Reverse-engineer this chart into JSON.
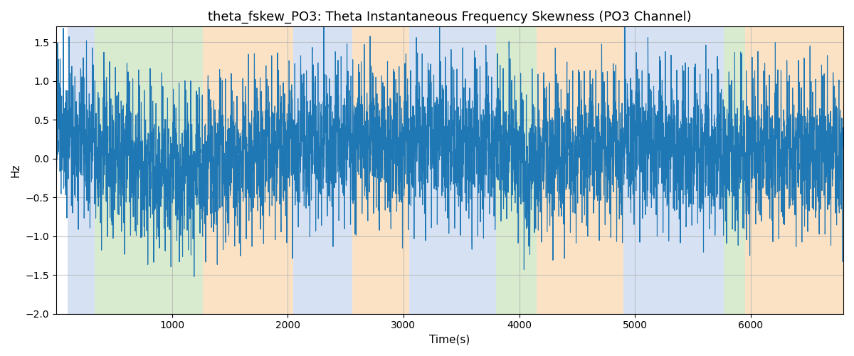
{
  "title": "theta_fskew_PO3: Theta Instantaneous Frequency Skewness (PO3 Channel)",
  "xlabel": "Time(s)",
  "ylabel": "Hz",
  "xlim": [
    0,
    6800
  ],
  "ylim": [
    -2.0,
    1.7
  ],
  "yticks": [
    -2.0,
    -1.5,
    -1.0,
    -0.5,
    0.0,
    0.5,
    1.0,
    1.5
  ],
  "xticks": [
    1000,
    2000,
    3000,
    4000,
    5000,
    6000
  ],
  "line_color": "#1f77b4",
  "line_width": 0.8,
  "bg_regions": [
    {
      "xstart": 100,
      "xend": 330,
      "color": "#aec6e8",
      "alpha": 0.5
    },
    {
      "xstart": 330,
      "xend": 1270,
      "color": "#b5d9a1",
      "alpha": 0.5
    },
    {
      "xstart": 1270,
      "xend": 2050,
      "color": "#f9c78a",
      "alpha": 0.5
    },
    {
      "xstart": 2050,
      "xend": 2560,
      "color": "#aec6e8",
      "alpha": 0.5
    },
    {
      "xstart": 2560,
      "xend": 3050,
      "color": "#f9c78a",
      "alpha": 0.5
    },
    {
      "xstart": 3050,
      "xend": 3800,
      "color": "#aec6e8",
      "alpha": 0.5
    },
    {
      "xstart": 3800,
      "xend": 4150,
      "color": "#b5d9a1",
      "alpha": 0.5
    },
    {
      "xstart": 4150,
      "xend": 4530,
      "color": "#f9c78a",
      "alpha": 0.5
    },
    {
      "xstart": 4530,
      "xend": 4900,
      "color": "#f9c78a",
      "alpha": 0.5
    },
    {
      "xstart": 4900,
      "xend": 5770,
      "color": "#aec6e8",
      "alpha": 0.5
    },
    {
      "xstart": 5770,
      "xend": 5950,
      "color": "#b5d9a1",
      "alpha": 0.5
    },
    {
      "xstart": 5950,
      "xend": 6800,
      "color": "#f9c78a",
      "alpha": 0.5
    }
  ],
  "grid_color": "#b0b0b0",
  "grid_alpha": 0.7,
  "grid_linewidth": 0.8,
  "figsize": [
    12.0,
    5.0
  ],
  "dpi": 100,
  "random_seed": 42,
  "n_points": 6700,
  "segment_means": [
    {
      "xstart": 0,
      "xend": 100,
      "mean": 0.8
    },
    {
      "xstart": 100,
      "xend": 330,
      "mean": 0.5
    },
    {
      "xstart": 330,
      "xend": 700,
      "mean": 0.15
    },
    {
      "xstart": 700,
      "xend": 1270,
      "mean": -0.3
    },
    {
      "xstart": 1270,
      "xend": 1700,
      "mean": -0.1
    },
    {
      "xstart": 1700,
      "xend": 2050,
      "mean": 0.25
    },
    {
      "xstart": 2050,
      "xend": 2560,
      "mean": 0.4
    },
    {
      "xstart": 2560,
      "xend": 2800,
      "mean": 0.5
    },
    {
      "xstart": 2800,
      "xend": 3050,
      "mean": 0.3
    },
    {
      "xstart": 3050,
      "xend": 3400,
      "mean": 0.5
    },
    {
      "xstart": 3400,
      "xend": 3800,
      "mean": 0.3
    },
    {
      "xstart": 3800,
      "xend": 4000,
      "mean": 0.4
    },
    {
      "xstart": 4000,
      "xend": 4150,
      "mean": -0.3
    },
    {
      "xstart": 4150,
      "xend": 4530,
      "mean": 0.1
    },
    {
      "xstart": 4530,
      "xend": 4900,
      "mean": 0.3
    },
    {
      "xstart": 4900,
      "xend": 5300,
      "mean": 0.4
    },
    {
      "xstart": 5300,
      "xend": 5770,
      "mean": 0.2
    },
    {
      "xstart": 5770,
      "xend": 5950,
      "mean": 0.1
    },
    {
      "xstart": 5950,
      "xend": 6800,
      "mean": 0.2
    }
  ]
}
